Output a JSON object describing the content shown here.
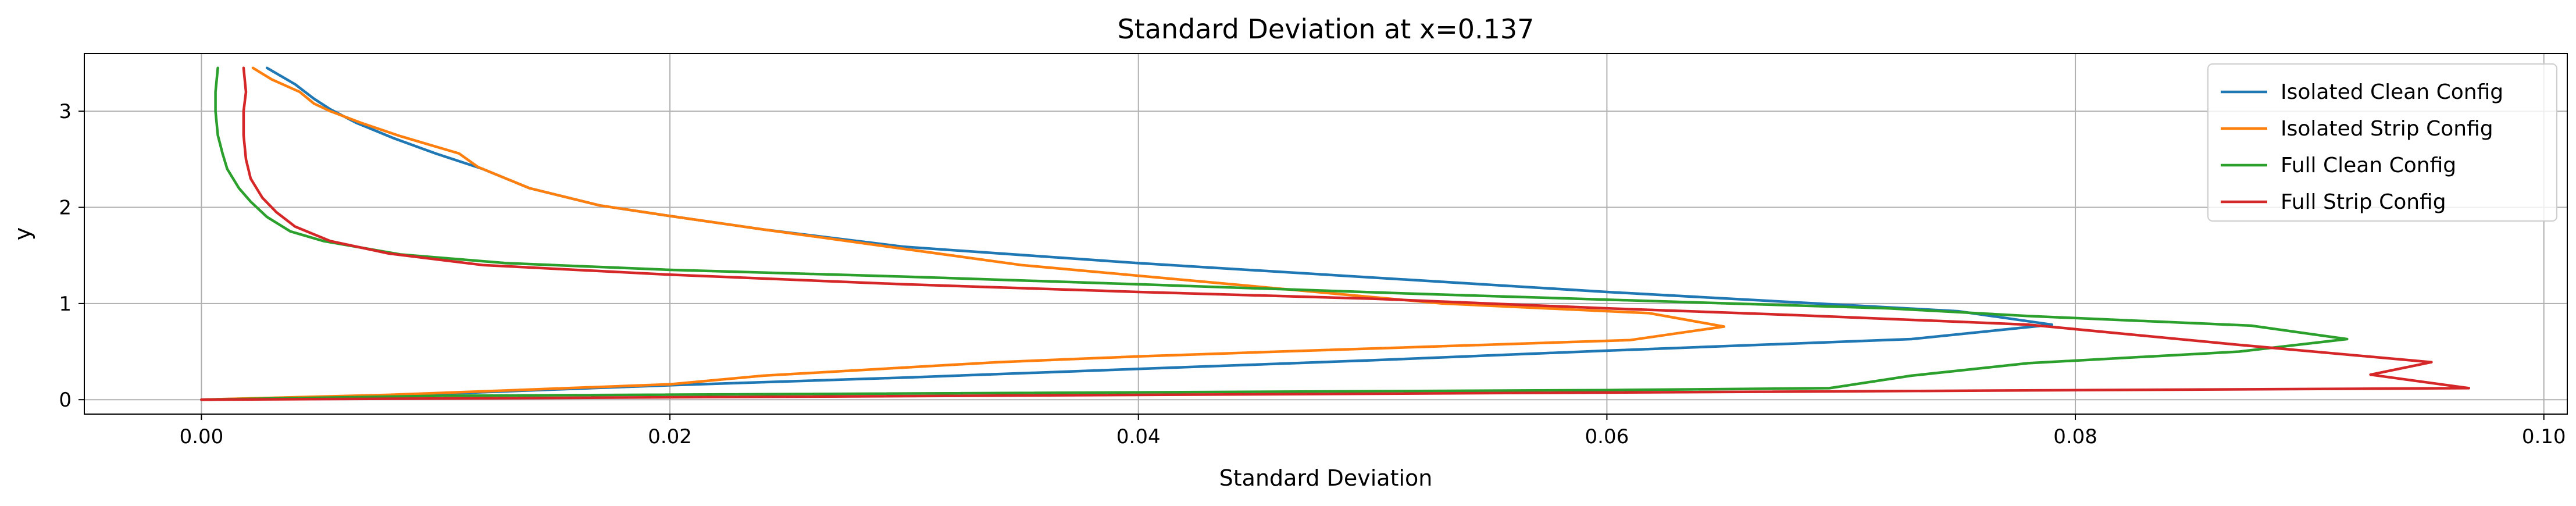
{
  "chart_data": {
    "type": "line",
    "title": "Standard Deviation at x=0.137",
    "xlabel": "Standard Deviation",
    "ylabel": "y",
    "xlim": [
      -0.005,
      0.101
    ],
    "ylim": [
      -0.15,
      3.6
    ],
    "xticks": [
      "0.00",
      "0.02",
      "0.04",
      "0.06",
      "0.08",
      "0.10"
    ],
    "yticks": [
      "0",
      "1",
      "2",
      "3"
    ],
    "xtick_values": [
      0,
      0.02,
      0.04,
      0.06,
      0.08,
      0.1
    ],
    "ytick_values": [
      0,
      1,
      2,
      3
    ],
    "grid": true,
    "legend_position": "top-right",
    "series": [
      {
        "name": "Isolated Clean Config",
        "color": "#1f77b4",
        "points": [
          [
            0.0,
            0.0
          ],
          [
            0.01,
            0.06
          ],
          [
            0.02,
            0.15
          ],
          [
            0.03,
            0.23
          ],
          [
            0.04,
            0.32
          ],
          [
            0.05,
            0.41
          ],
          [
            0.06,
            0.51
          ],
          [
            0.073,
            0.63
          ],
          [
            0.079,
            0.78
          ],
          [
            0.075,
            0.92
          ],
          [
            0.06,
            1.12
          ],
          [
            0.04,
            1.42
          ],
          [
            0.03,
            1.59
          ],
          [
            0.024,
            1.77
          ],
          [
            0.02,
            1.91
          ],
          [
            0.017,
            2.02
          ],
          [
            0.014,
            2.2
          ],
          [
            0.012,
            2.4
          ],
          [
            0.01,
            2.56
          ],
          [
            0.0082,
            2.72
          ],
          [
            0.0066,
            2.88
          ],
          [
            0.0055,
            3.02
          ],
          [
            0.0048,
            3.13
          ],
          [
            0.004,
            3.28
          ],
          [
            0.0028,
            3.45
          ]
        ]
      },
      {
        "name": "Isolated Strip Config",
        "color": "#ff7f0e",
        "points": [
          [
            0.0,
            0.0
          ],
          [
            0.008,
            0.05
          ],
          [
            0.02,
            0.16
          ],
          [
            0.024,
            0.25
          ],
          [
            0.034,
            0.39
          ],
          [
            0.04,
            0.45
          ],
          [
            0.046,
            0.5
          ],
          [
            0.061,
            0.62
          ],
          [
            0.065,
            0.76
          ],
          [
            0.0618,
            0.9
          ],
          [
            0.053,
            1.0
          ],
          [
            0.035,
            1.4
          ],
          [
            0.024,
            1.77
          ],
          [
            0.02,
            1.91
          ],
          [
            0.017,
            2.02
          ],
          [
            0.014,
            2.2
          ],
          [
            0.0118,
            2.42
          ],
          [
            0.011,
            2.56
          ],
          [
            0.0085,
            2.74
          ],
          [
            0.0068,
            2.88
          ],
          [
            0.0055,
            3.0
          ],
          [
            0.0048,
            3.08
          ],
          [
            0.0042,
            3.2
          ],
          [
            0.003,
            3.33
          ],
          [
            0.0022,
            3.45
          ]
        ]
      },
      {
        "name": "Full Clean Config",
        "color": "#2ca02c",
        "points": [
          [
            0.0,
            0.0
          ],
          [
            0.01,
            0.04
          ],
          [
            0.06,
            0.1
          ],
          [
            0.0695,
            0.12
          ],
          [
            0.073,
            0.25
          ],
          [
            0.078,
            0.38
          ],
          [
            0.087,
            0.5
          ],
          [
            0.0916,
            0.63
          ],
          [
            0.0875,
            0.77
          ],
          [
            0.078,
            0.87
          ],
          [
            0.072,
            0.95
          ],
          [
            0.052,
            1.1
          ],
          [
            0.04,
            1.2
          ],
          [
            0.03,
            1.28
          ],
          [
            0.02,
            1.35
          ],
          [
            0.013,
            1.42
          ],
          [
            0.0085,
            1.51
          ],
          [
            0.0052,
            1.65
          ],
          [
            0.0038,
            1.75
          ],
          [
            0.0028,
            1.9
          ],
          [
            0.0021,
            2.06
          ],
          [
            0.0016,
            2.2
          ],
          [
            0.0011,
            2.4
          ],
          [
            0.0009,
            2.56
          ],
          [
            0.0007,
            2.75
          ],
          [
            0.0006,
            3.0
          ],
          [
            0.0006,
            3.2
          ],
          [
            0.0007,
            3.45
          ]
        ]
      },
      {
        "name": "Full Strip Config",
        "color": "#d62728",
        "points": [
          [
            0.0,
            0.0
          ],
          [
            0.0968,
            0.12
          ],
          [
            0.0926,
            0.26
          ],
          [
            0.0952,
            0.39
          ],
          [
            0.087,
            0.57
          ],
          [
            0.078,
            0.78
          ],
          [
            0.068,
            0.88
          ],
          [
            0.06,
            0.95
          ],
          [
            0.05,
            1.05
          ],
          [
            0.04,
            1.12
          ],
          [
            0.03,
            1.2
          ],
          [
            0.02,
            1.3
          ],
          [
            0.012,
            1.4
          ],
          [
            0.008,
            1.52
          ],
          [
            0.0055,
            1.65
          ],
          [
            0.004,
            1.8
          ],
          [
            0.0032,
            1.95
          ],
          [
            0.0026,
            2.1
          ],
          [
            0.0021,
            2.3
          ],
          [
            0.0019,
            2.5
          ],
          [
            0.0018,
            2.75
          ],
          [
            0.0018,
            3.0
          ],
          [
            0.0019,
            3.2
          ],
          [
            0.0018,
            3.45
          ]
        ]
      }
    ]
  }
}
